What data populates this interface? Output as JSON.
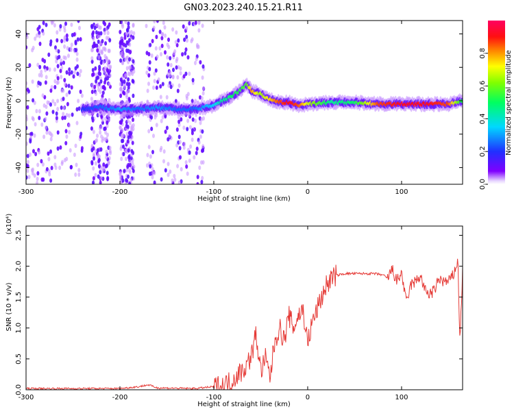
{
  "title": "GN03.2023.240.15.21.R11",
  "colors": {
    "snr_line": "#e53935",
    "heat_low": "#8000ff",
    "heat_high": "#ff0050",
    "axes": "#000000"
  },
  "chart_data": [
    {
      "type": "heatmap",
      "title": "GN03.2023.240.15.21.R11",
      "xlabel": "Height of straight line (km)",
      "ylabel": "Frequency (Hz)",
      "xlim": [
        -300,
        165
      ],
      "ylim": [
        -50,
        48
      ],
      "xticks": [
        -300,
        -200,
        -100,
        0,
        100
      ],
      "yticks": [
        -40,
        -20,
        0,
        20,
        40
      ],
      "colorbar": {
        "label": "Normalized spectral amplitude",
        "range": [
          0.0,
          1.0
        ],
        "ticks": [
          "0.0",
          "0.2",
          "0.4",
          "0.6",
          "0.8"
        ],
        "tick_values": [
          0.0,
          0.2,
          0.4,
          0.6,
          0.8
        ]
      },
      "ridge": {
        "x": [
          -240,
          -220,
          -200,
          -180,
          -160,
          -140,
          -120,
          -100,
          -90,
          -80,
          -70,
          -65,
          -60,
          -50,
          -40,
          -30,
          -20,
          -10,
          0,
          25,
          50,
          75,
          100,
          125,
          150,
          165
        ],
        "y": [
          -5,
          -4,
          -5,
          -5,
          -4,
          -5,
          -5,
          -3,
          0,
          3,
          7,
          10,
          6,
          4,
          1,
          -1,
          -1,
          -3,
          -2,
          -1,
          -1,
          -2,
          -2,
          -2,
          -2,
          0
        ],
        "amplitude": [
          0.25,
          0.3,
          0.35,
          0.3,
          0.35,
          0.3,
          0.3,
          0.4,
          0.5,
          0.55,
          0.6,
          0.62,
          0.85,
          0.7,
          0.8,
          0.9,
          0.95,
          0.9,
          0.75,
          0.5,
          0.55,
          0.9,
          0.95,
          0.95,
          0.9,
          0.55
        ]
      },
      "scatter_regions": [
        [
          -300,
          -240
        ],
        [
          -230,
          -210
        ],
        [
          -200,
          -185
        ],
        [
          -172,
          -110
        ]
      ]
    },
    {
      "type": "line",
      "xlabel": "Height of straight line (km)",
      "ylabel": "SNR (10 * v/v)",
      "multiplier": "(x10⁴)",
      "xlim": [
        -300,
        165
      ],
      "ylim": [
        0,
        2.65
      ],
      "xticks": [
        -300,
        -200,
        -100,
        0,
        100
      ],
      "yticks": [
        "0.0",
        "0.5",
        "1.0",
        "1.5",
        "2.0",
        "2.5"
      ],
      "ytick_values": [
        0,
        0.5,
        1.0,
        1.5,
        2.0,
        2.5
      ],
      "series": [
        {
          "x": [
            -300,
            -250,
            -200,
            -180,
            -170,
            -160,
            -120,
            -100,
            -90,
            -80,
            -75,
            -70,
            -65,
            -60,
            -55,
            -50,
            -45,
            -40,
            -35,
            -30,
            -25,
            -20,
            -15,
            -10,
            -5,
            0,
            5,
            10,
            15,
            20,
            25,
            30,
            40,
            50,
            60,
            70,
            80,
            85,
            90,
            95,
            100,
            105,
            110,
            115,
            120,
            125,
            130,
            135,
            140,
            145,
            150,
            155,
            160,
            162,
            165
          ],
          "y": [
            0.02,
            0.02,
            0.02,
            0.05,
            0.08,
            0.03,
            0.02,
            0.05,
            0.07,
            0.15,
            0.25,
            0.3,
            0.4,
            0.55,
            0.9,
            0.3,
            0.5,
            0.2,
            0.8,
            1.0,
            0.8,
            1.2,
            1.0,
            1.2,
            1.3,
            0.75,
            1.1,
            1.3,
            1.5,
            1.7,
            1.8,
            1.85,
            1.88,
            1.88,
            1.88,
            1.88,
            1.86,
            1.8,
            1.95,
            1.75,
            1.9,
            1.4,
            1.7,
            1.75,
            1.85,
            1.6,
            1.55,
            1.6,
            1.8,
            1.75,
            1.75,
            1.85,
            2.1,
            0.8,
            1.9
          ]
        }
      ]
    }
  ]
}
